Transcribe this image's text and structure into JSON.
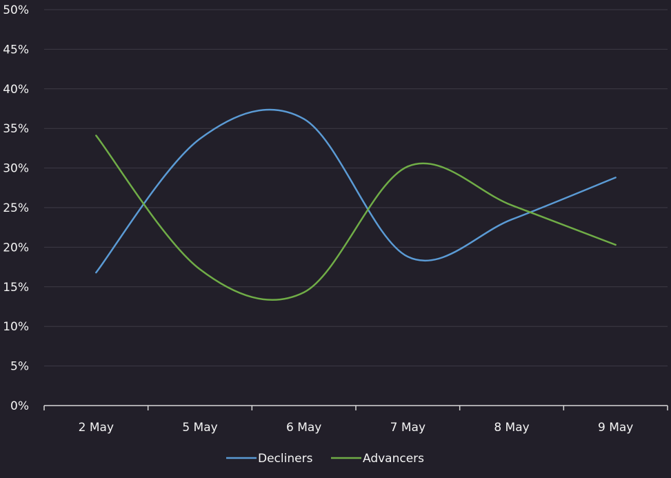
{
  "chart_data": {
    "type": "line",
    "categories": [
      "2 May",
      "5 May",
      "6 May",
      "7 May",
      "8 May",
      "9 May"
    ],
    "series": [
      {
        "name": "Decliners",
        "color": "#5b9bd5",
        "values": [
          0.168,
          0.337,
          0.362,
          0.188,
          0.235,
          0.288
        ]
      },
      {
        "name": "Advancers",
        "color": "#70ad47",
        "values": [
          0.341,
          0.172,
          0.143,
          0.302,
          0.253,
          0.203
        ]
      }
    ],
    "ylim": [
      0,
      0.5
    ],
    "yticks": [
      0,
      0.05,
      0.1,
      0.15,
      0.2,
      0.25,
      0.3,
      0.35,
      0.4,
      0.45,
      0.5
    ],
    "ytick_labels": [
      "0%",
      "5%",
      "10%",
      "15%",
      "20%",
      "25%",
      "30%",
      "35%",
      "40%",
      "45%",
      "50%"
    ],
    "grid": true,
    "smooth": true,
    "legend_position": "bottom",
    "background": "#221f29",
    "gridline_color": "#3e3b46",
    "axis_color": "#d9d9d9"
  }
}
